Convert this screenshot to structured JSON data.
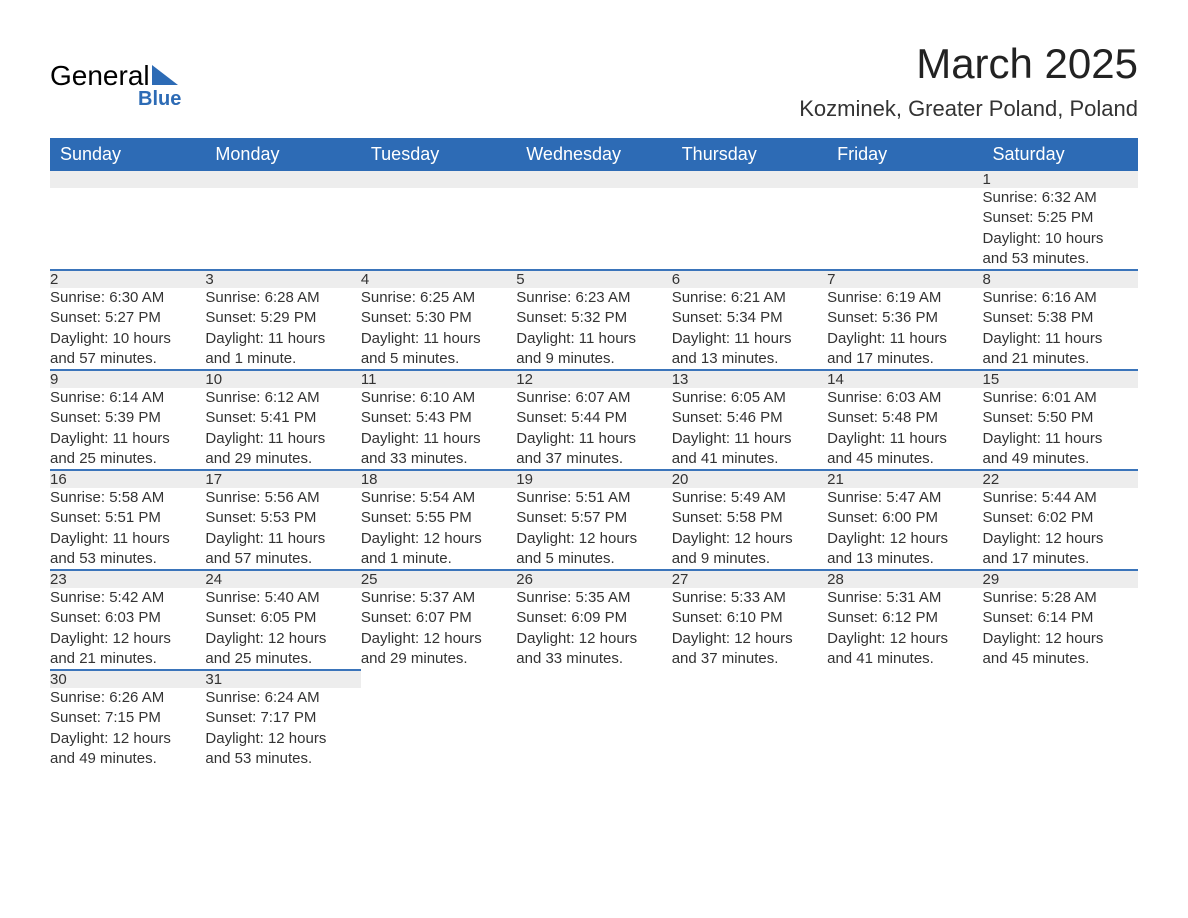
{
  "logo": {
    "general": "General",
    "blue": "Blue"
  },
  "header": {
    "month_title": "March 2025",
    "location": "Kozminek, Greater Poland, Poland"
  },
  "calendar": {
    "day_headers": [
      "Sunday",
      "Monday",
      "Tuesday",
      "Wednesday",
      "Thursday",
      "Friday",
      "Saturday"
    ],
    "header_bg_color": "#2d6bb5",
    "header_text_color": "#ffffff",
    "day_num_bg_color": "#ededed",
    "row_border_color": "#3a74ba",
    "weeks": [
      {
        "days": [
          null,
          null,
          null,
          null,
          null,
          null,
          {
            "num": "1",
            "sunrise": "Sunrise: 6:32 AM",
            "sunset": "Sunset: 5:25 PM",
            "daylight1": "Daylight: 10 hours",
            "daylight2": "and 53 minutes."
          }
        ]
      },
      {
        "days": [
          {
            "num": "2",
            "sunrise": "Sunrise: 6:30 AM",
            "sunset": "Sunset: 5:27 PM",
            "daylight1": "Daylight: 10 hours",
            "daylight2": "and 57 minutes."
          },
          {
            "num": "3",
            "sunrise": "Sunrise: 6:28 AM",
            "sunset": "Sunset: 5:29 PM",
            "daylight1": "Daylight: 11 hours",
            "daylight2": "and 1 minute."
          },
          {
            "num": "4",
            "sunrise": "Sunrise: 6:25 AM",
            "sunset": "Sunset: 5:30 PM",
            "daylight1": "Daylight: 11 hours",
            "daylight2": "and 5 minutes."
          },
          {
            "num": "5",
            "sunrise": "Sunrise: 6:23 AM",
            "sunset": "Sunset: 5:32 PM",
            "daylight1": "Daylight: 11 hours",
            "daylight2": "and 9 minutes."
          },
          {
            "num": "6",
            "sunrise": "Sunrise: 6:21 AM",
            "sunset": "Sunset: 5:34 PM",
            "daylight1": "Daylight: 11 hours",
            "daylight2": "and 13 minutes."
          },
          {
            "num": "7",
            "sunrise": "Sunrise: 6:19 AM",
            "sunset": "Sunset: 5:36 PM",
            "daylight1": "Daylight: 11 hours",
            "daylight2": "and 17 minutes."
          },
          {
            "num": "8",
            "sunrise": "Sunrise: 6:16 AM",
            "sunset": "Sunset: 5:38 PM",
            "daylight1": "Daylight: 11 hours",
            "daylight2": "and 21 minutes."
          }
        ]
      },
      {
        "days": [
          {
            "num": "9",
            "sunrise": "Sunrise: 6:14 AM",
            "sunset": "Sunset: 5:39 PM",
            "daylight1": "Daylight: 11 hours",
            "daylight2": "and 25 minutes."
          },
          {
            "num": "10",
            "sunrise": "Sunrise: 6:12 AM",
            "sunset": "Sunset: 5:41 PM",
            "daylight1": "Daylight: 11 hours",
            "daylight2": "and 29 minutes."
          },
          {
            "num": "11",
            "sunrise": "Sunrise: 6:10 AM",
            "sunset": "Sunset: 5:43 PM",
            "daylight1": "Daylight: 11 hours",
            "daylight2": "and 33 minutes."
          },
          {
            "num": "12",
            "sunrise": "Sunrise: 6:07 AM",
            "sunset": "Sunset: 5:44 PM",
            "daylight1": "Daylight: 11 hours",
            "daylight2": "and 37 minutes."
          },
          {
            "num": "13",
            "sunrise": "Sunrise: 6:05 AM",
            "sunset": "Sunset: 5:46 PM",
            "daylight1": "Daylight: 11 hours",
            "daylight2": "and 41 minutes."
          },
          {
            "num": "14",
            "sunrise": "Sunrise: 6:03 AM",
            "sunset": "Sunset: 5:48 PM",
            "daylight1": "Daylight: 11 hours",
            "daylight2": "and 45 minutes."
          },
          {
            "num": "15",
            "sunrise": "Sunrise: 6:01 AM",
            "sunset": "Sunset: 5:50 PM",
            "daylight1": "Daylight: 11 hours",
            "daylight2": "and 49 minutes."
          }
        ]
      },
      {
        "days": [
          {
            "num": "16",
            "sunrise": "Sunrise: 5:58 AM",
            "sunset": "Sunset: 5:51 PM",
            "daylight1": "Daylight: 11 hours",
            "daylight2": "and 53 minutes."
          },
          {
            "num": "17",
            "sunrise": "Sunrise: 5:56 AM",
            "sunset": "Sunset: 5:53 PM",
            "daylight1": "Daylight: 11 hours",
            "daylight2": "and 57 minutes."
          },
          {
            "num": "18",
            "sunrise": "Sunrise: 5:54 AM",
            "sunset": "Sunset: 5:55 PM",
            "daylight1": "Daylight: 12 hours",
            "daylight2": "and 1 minute."
          },
          {
            "num": "19",
            "sunrise": "Sunrise: 5:51 AM",
            "sunset": "Sunset: 5:57 PM",
            "daylight1": "Daylight: 12 hours",
            "daylight2": "and 5 minutes."
          },
          {
            "num": "20",
            "sunrise": "Sunrise: 5:49 AM",
            "sunset": "Sunset: 5:58 PM",
            "daylight1": "Daylight: 12 hours",
            "daylight2": "and 9 minutes."
          },
          {
            "num": "21",
            "sunrise": "Sunrise: 5:47 AM",
            "sunset": "Sunset: 6:00 PM",
            "daylight1": "Daylight: 12 hours",
            "daylight2": "and 13 minutes."
          },
          {
            "num": "22",
            "sunrise": "Sunrise: 5:44 AM",
            "sunset": "Sunset: 6:02 PM",
            "daylight1": "Daylight: 12 hours",
            "daylight2": "and 17 minutes."
          }
        ]
      },
      {
        "days": [
          {
            "num": "23",
            "sunrise": "Sunrise: 5:42 AM",
            "sunset": "Sunset: 6:03 PM",
            "daylight1": "Daylight: 12 hours",
            "daylight2": "and 21 minutes."
          },
          {
            "num": "24",
            "sunrise": "Sunrise: 5:40 AM",
            "sunset": "Sunset: 6:05 PM",
            "daylight1": "Daylight: 12 hours",
            "daylight2": "and 25 minutes."
          },
          {
            "num": "25",
            "sunrise": "Sunrise: 5:37 AM",
            "sunset": "Sunset: 6:07 PM",
            "daylight1": "Daylight: 12 hours",
            "daylight2": "and 29 minutes."
          },
          {
            "num": "26",
            "sunrise": "Sunrise: 5:35 AM",
            "sunset": "Sunset: 6:09 PM",
            "daylight1": "Daylight: 12 hours",
            "daylight2": "and 33 minutes."
          },
          {
            "num": "27",
            "sunrise": "Sunrise: 5:33 AM",
            "sunset": "Sunset: 6:10 PM",
            "daylight1": "Daylight: 12 hours",
            "daylight2": "and 37 minutes."
          },
          {
            "num": "28",
            "sunrise": "Sunrise: 5:31 AM",
            "sunset": "Sunset: 6:12 PM",
            "daylight1": "Daylight: 12 hours",
            "daylight2": "and 41 minutes."
          },
          {
            "num": "29",
            "sunrise": "Sunrise: 5:28 AM",
            "sunset": "Sunset: 6:14 PM",
            "daylight1": "Daylight: 12 hours",
            "daylight2": "and 45 minutes."
          }
        ]
      },
      {
        "days": [
          {
            "num": "30",
            "sunrise": "Sunrise: 6:26 AM",
            "sunset": "Sunset: 7:15 PM",
            "daylight1": "Daylight: 12 hours",
            "daylight2": "and 49 minutes."
          },
          {
            "num": "31",
            "sunrise": "Sunrise: 6:24 AM",
            "sunset": "Sunset: 7:17 PM",
            "daylight1": "Daylight: 12 hours",
            "daylight2": "and 53 minutes."
          },
          null,
          null,
          null,
          null,
          null
        ]
      }
    ]
  }
}
